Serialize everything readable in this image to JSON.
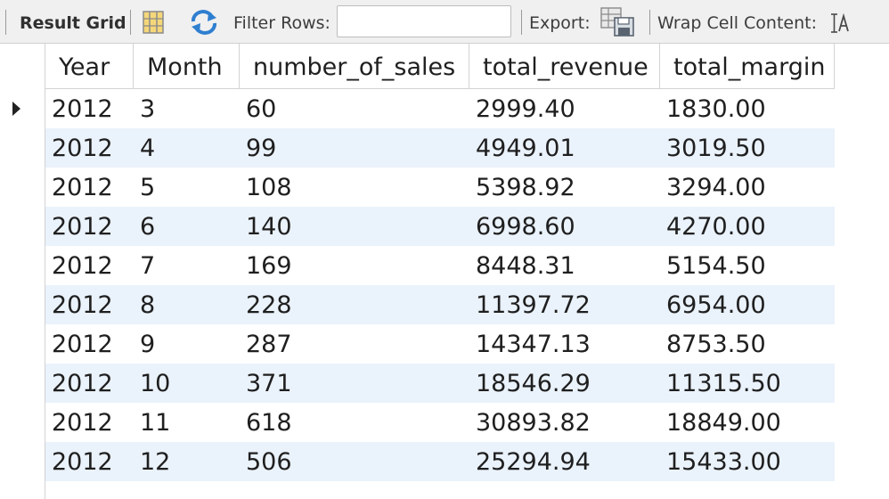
{
  "toolbar": {
    "result_grid_label": "Result Grid",
    "filter_rows_label": "Filter Rows:",
    "filter_rows_value": "",
    "export_label": "Export:",
    "wrap_label": "Wrap Cell Content:",
    "icons": [
      "grid-layout-icon",
      "refresh-icon",
      "export-save-icon",
      "wrap-text-icon"
    ]
  },
  "grid": {
    "columns": [
      "Year",
      "Month",
      "number_of_sales",
      "total_revenue",
      "total_margin"
    ],
    "current_row": 0,
    "rows": [
      [
        "2012",
        "3",
        "60",
        "2999.40",
        "1830.00"
      ],
      [
        "2012",
        "4",
        "99",
        "4949.01",
        "3019.50"
      ],
      [
        "2012",
        "5",
        "108",
        "5398.92",
        "3294.00"
      ],
      [
        "2012",
        "6",
        "140",
        "6998.60",
        "4270.00"
      ],
      [
        "2012",
        "7",
        "169",
        "8448.31",
        "5154.50"
      ],
      [
        "2012",
        "8",
        "228",
        "11397.72",
        "6954.00"
      ],
      [
        "2012",
        "9",
        "287",
        "14347.13",
        "8753.50"
      ],
      [
        "2012",
        "10",
        "371",
        "18546.29",
        "11315.50"
      ],
      [
        "2012",
        "11",
        "618",
        "30893.82",
        "18849.00"
      ],
      [
        "2012",
        "12",
        "506",
        "25294.94",
        "15433.00"
      ]
    ]
  },
  "colors": {
    "row_alt": "#eaf2fb",
    "toolbar_bg": "#f0f0f0",
    "refresh_icon": "#2f7fd0"
  }
}
